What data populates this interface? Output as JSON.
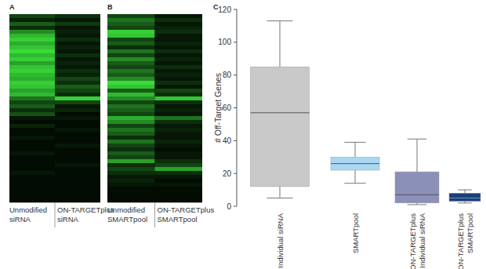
{
  "chart_data": [
    {
      "type": "heatmap",
      "title": "A",
      "color": "#3ce63c",
      "categories": [
        "Unmodified siRNA",
        "ON-TARGETplus siRNA"
      ],
      "cells": [
        [
          0.3,
          0.2
        ],
        [
          0.15,
          0.1
        ],
        [
          0.4,
          0.25
        ],
        [
          0.2,
          0.1
        ],
        [
          0.6,
          0.15
        ],
        [
          0.8,
          0.1
        ],
        [
          0.9,
          0.2
        ],
        [
          0.75,
          0.1
        ],
        [
          0.85,
          0.15
        ],
        [
          0.95,
          0.1
        ],
        [
          0.8,
          0.2
        ],
        [
          0.9,
          0.1
        ],
        [
          0.7,
          0.15
        ],
        [
          0.85,
          0.1
        ],
        [
          0.9,
          0.2
        ],
        [
          0.8,
          0.15
        ],
        [
          0.75,
          0.3
        ],
        [
          0.9,
          0.2
        ],
        [
          0.85,
          0.4
        ],
        [
          0.7,
          0.3
        ],
        [
          0.8,
          0.2
        ],
        [
          0.5,
          0.9
        ],
        [
          0.3,
          0.3
        ],
        [
          0.4,
          0.1
        ],
        [
          0.2,
          0.15
        ],
        [
          0.35,
          0.05
        ],
        [
          0.1,
          0.1
        ],
        [
          0.05,
          0.05
        ],
        [
          0.15,
          0.05
        ],
        [
          0.05,
          0.1
        ],
        [
          0.05,
          0.05
        ],
        [
          0.1,
          0.05
        ],
        [
          0.05,
          0.05
        ],
        [
          0.05,
          0.1
        ],
        [
          0.05,
          0.05
        ],
        [
          0.1,
          0.05
        ],
        [
          0.05,
          0.05
        ],
        [
          0.05,
          0.05
        ],
        [
          0.05,
          0.1
        ],
        [
          0.05,
          0.05
        ],
        [
          0.1,
          0.05
        ],
        [
          0.05,
          0.05
        ],
        [
          0.05,
          0.05
        ],
        [
          0.05,
          0.05
        ],
        [
          0.05,
          0.05
        ],
        [
          0.05,
          0.05
        ],
        [
          0.05,
          0.05
        ],
        [
          0.05,
          0.05
        ]
      ]
    },
    {
      "type": "heatmap",
      "title": "B",
      "color": "#3ce63c",
      "categories": [
        "Unmodified SMARTpool",
        "ON-TARGETplus SMARTpool"
      ],
      "cells": [
        [
          0.3,
          0.1
        ],
        [
          0.5,
          0.2
        ],
        [
          0.4,
          0.1
        ],
        [
          0.3,
          0.15
        ],
        [
          0.9,
          0.2
        ],
        [
          0.85,
          0.1
        ],
        [
          0.3,
          0.1
        ],
        [
          0.4,
          0.15
        ],
        [
          0.2,
          0.1
        ],
        [
          0.5,
          0.2
        ],
        [
          0.3,
          0.1
        ],
        [
          0.6,
          0.15
        ],
        [
          0.4,
          0.1
        ],
        [
          0.3,
          0.2
        ],
        [
          0.5,
          0.1
        ],
        [
          0.4,
          0.15
        ],
        [
          0.6,
          0.1
        ],
        [
          0.95,
          0.2
        ],
        [
          0.85,
          0.1
        ],
        [
          0.4,
          0.3
        ],
        [
          0.8,
          0.2
        ],
        [
          0.6,
          0.85
        ],
        [
          0.3,
          0.2
        ],
        [
          0.5,
          0.1
        ],
        [
          0.4,
          0.15
        ],
        [
          0.3,
          0.1
        ],
        [
          0.75,
          0.5
        ],
        [
          0.6,
          0.2
        ],
        [
          0.3,
          0.1
        ],
        [
          0.5,
          0.15
        ],
        [
          0.4,
          0.1
        ],
        [
          0.2,
          0.1
        ],
        [
          0.5,
          0.15
        ],
        [
          0.3,
          0.1
        ],
        [
          0.2,
          0.05
        ],
        [
          0.4,
          0.1
        ],
        [
          0.3,
          0.1
        ],
        [
          0.7,
          0.2
        ],
        [
          0.2,
          0.3
        ],
        [
          0.3,
          0.7
        ],
        [
          0.2,
          0.2
        ],
        [
          0.1,
          0.1
        ],
        [
          0.15,
          0.05
        ],
        [
          0.1,
          0.1
        ],
        [
          0.05,
          0.05
        ],
        [
          0.05,
          0.05
        ],
        [
          0.05,
          0.05
        ],
        [
          0.05,
          0.05
        ]
      ]
    },
    {
      "type": "box",
      "title": "C",
      "y_label": "# Off-Target Genes",
      "categories": [
        "Individual siRNA",
        "SMARTpool",
        "ON-TARGETplus Individual siRNA",
        "ON-TARGETplus SMARTpool"
      ],
      "min": [
        5,
        14,
        1,
        2
      ],
      "q1": [
        12,
        22,
        2,
        3
      ],
      "median": [
        57,
        26,
        7,
        5
      ],
      "q3": [
        85,
        30,
        21,
        8
      ],
      "max": [
        113,
        39,
        41,
        10
      ],
      "colors": [
        "#c9c9c9",
        "#a9d9f2",
        "#8b90b9",
        "#1b4079"
      ],
      "ylim": [
        0,
        120
      ],
      "yticks": [
        0,
        20,
        40,
        60,
        80,
        100,
        120
      ]
    }
  ]
}
